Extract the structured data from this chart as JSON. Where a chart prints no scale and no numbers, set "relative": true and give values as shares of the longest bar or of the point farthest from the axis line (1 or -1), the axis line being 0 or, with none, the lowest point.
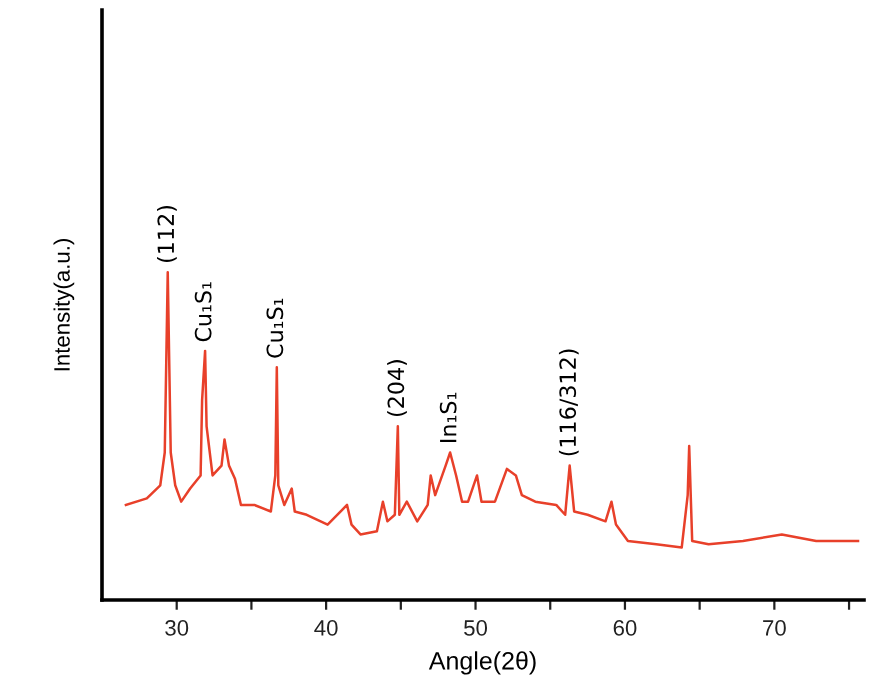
{
  "chart_data": {
    "type": "line",
    "xlabel": "Angle(2θ)",
    "ylabel": "Intensity(a.u.)",
    "relative": true,
    "tick_labels": "x",
    "grid": false,
    "marker": "none",
    "line_style": "solid",
    "xlim": [
      25,
      76
    ],
    "xticks": [
      30,
      {
        "value": 35,
        "label": null
      },
      40,
      {
        "value": 45,
        "label": null
      },
      50,
      {
        "value": 55,
        "label": null
      },
      60,
      {
        "value": 65,
        "label": null
      },
      70,
      {
        "value": 75,
        "label": null
      }
    ],
    "series": [
      {
        "color": "#e8402a",
        "x": [
          26.6,
          28.0,
          28.9,
          29.2,
          29.4,
          29.6,
          29.9,
          30.3,
          30.9,
          31.6,
          31.7,
          31.9,
          32.0,
          32.4,
          33.0,
          33.2,
          33.5,
          33.9,
          34.3,
          35.2,
          36.3,
          36.6,
          36.7,
          36.8,
          37.2,
          37.7,
          37.9,
          38.7,
          40.1,
          41.4,
          41.7,
          42.3,
          43.4,
          43.8,
          44.1,
          44.6,
          44.8,
          44.9,
          45.4,
          46.1,
          46.8,
          47.0,
          47.3,
          48.0,
          48.3,
          48.7,
          49.1,
          49.5,
          50.1,
          50.4,
          51.3,
          52.1,
          52.7,
          53.1,
          54.0,
          55.4,
          56.0,
          56.3,
          56.6,
          57.5,
          58.7,
          59.1,
          59.4,
          60.2,
          62.1,
          63.8,
          64.2,
          64.3,
          64.5,
          65.6,
          67.9,
          70.5,
          72.8,
          75.6
        ],
        "values": [
          0.29,
          0.31,
          0.35,
          0.45,
          1.0,
          0.45,
          0.35,
          0.3,
          0.34,
          0.38,
          0.61,
          0.76,
          0.53,
          0.38,
          0.41,
          0.49,
          0.41,
          0.37,
          0.29,
          0.29,
          0.27,
          0.38,
          0.71,
          0.35,
          0.29,
          0.34,
          0.27,
          0.26,
          0.23,
          0.29,
          0.23,
          0.2,
          0.21,
          0.3,
          0.24,
          0.26,
          0.53,
          0.26,
          0.3,
          0.24,
          0.29,
          0.38,
          0.32,
          0.41,
          0.45,
          0.38,
          0.3,
          0.3,
          0.38,
          0.3,
          0.3,
          0.4,
          0.38,
          0.32,
          0.3,
          0.29,
          0.26,
          0.41,
          0.27,
          0.26,
          0.24,
          0.3,
          0.23,
          0.18,
          0.17,
          0.16,
          0.32,
          0.47,
          0.18,
          0.17,
          0.18,
          0.2,
          0.18,
          0.18
        ]
      }
    ],
    "annotations": [
      {
        "text": "(112)",
        "x": 29.4,
        "y": 1.0
      },
      {
        "text": "Cu₁S₁",
        "x": 31.9,
        "y": 0.76
      },
      {
        "text": "Cu₁S₁",
        "x": 36.7,
        "y": 0.71
      },
      {
        "text": "(204)",
        "x": 44.8,
        "y": 0.53
      },
      {
        "text": "In₁S₁",
        "x": 48.3,
        "y": 0.45
      },
      {
        "text": "(116/312)",
        "x": 56.3,
        "y": 0.41
      }
    ]
  }
}
